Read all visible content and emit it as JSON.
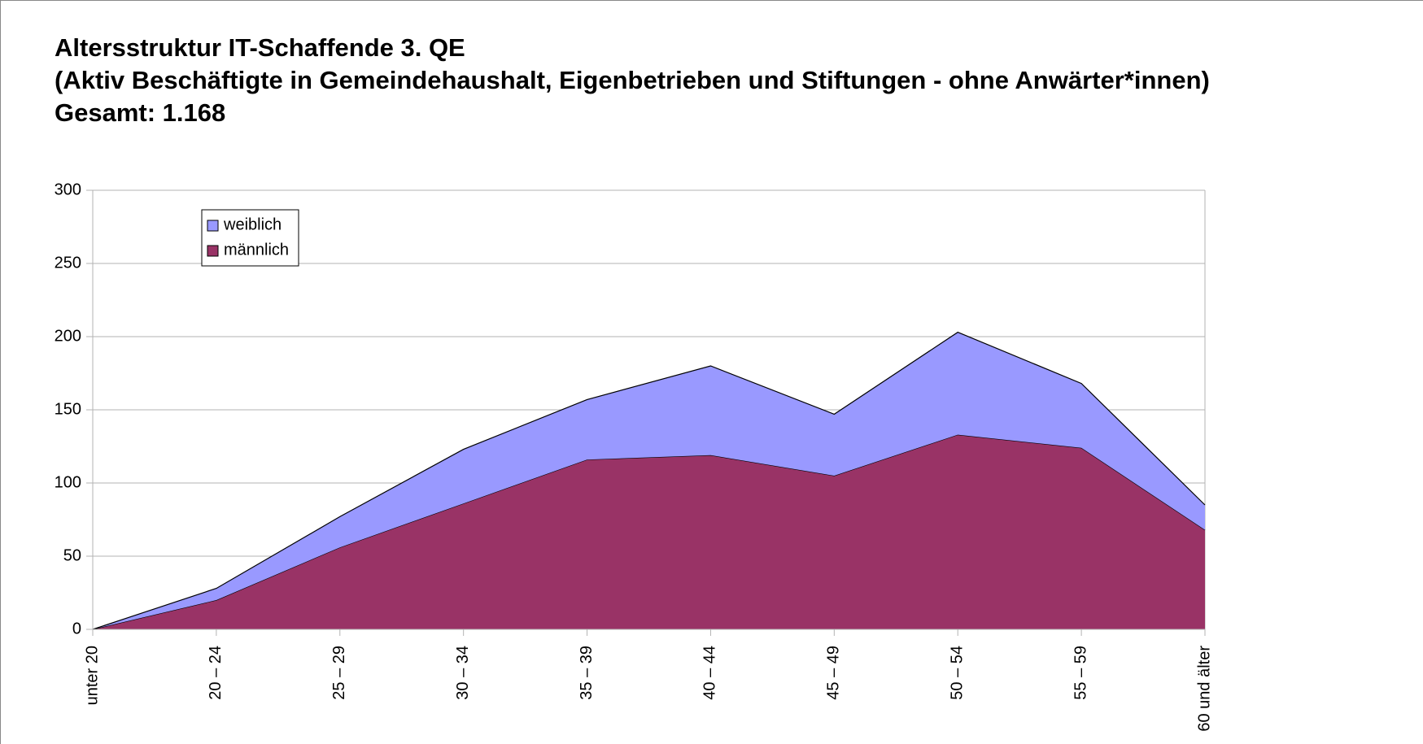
{
  "chart_data": {
    "type": "stacked-area",
    "title": [
      "Altersstruktur IT-Schaffende 3. QE",
      "(Aktiv Beschäftigte in Gemeindehaushalt, Eigenbetrieben und Stiftungen - ohne Anwärter*innen)",
      "Gesamt: 1.168"
    ],
    "categories": [
      "unter 20",
      "20 – 24",
      "25 – 29",
      "30 – 34",
      "35 – 39",
      "40 – 44",
      "45 – 49",
      "50 – 54",
      "55 – 59",
      "60 und älter"
    ],
    "series": [
      {
        "name": "männlich",
        "color": "#993366",
        "values": [
          0,
          20,
          56,
          86,
          116,
          119,
          105,
          133,
          124,
          68
        ]
      },
      {
        "name": "weiblich",
        "color": "#9999ff",
        "values": [
          0,
          8,
          21,
          37,
          41,
          61,
          42,
          70,
          44,
          17
        ]
      }
    ],
    "ylim": [
      0,
      300
    ],
    "yticks": [
      0,
      50,
      100,
      150,
      200,
      250,
      300
    ],
    "grid": true,
    "legend": "top-left"
  }
}
